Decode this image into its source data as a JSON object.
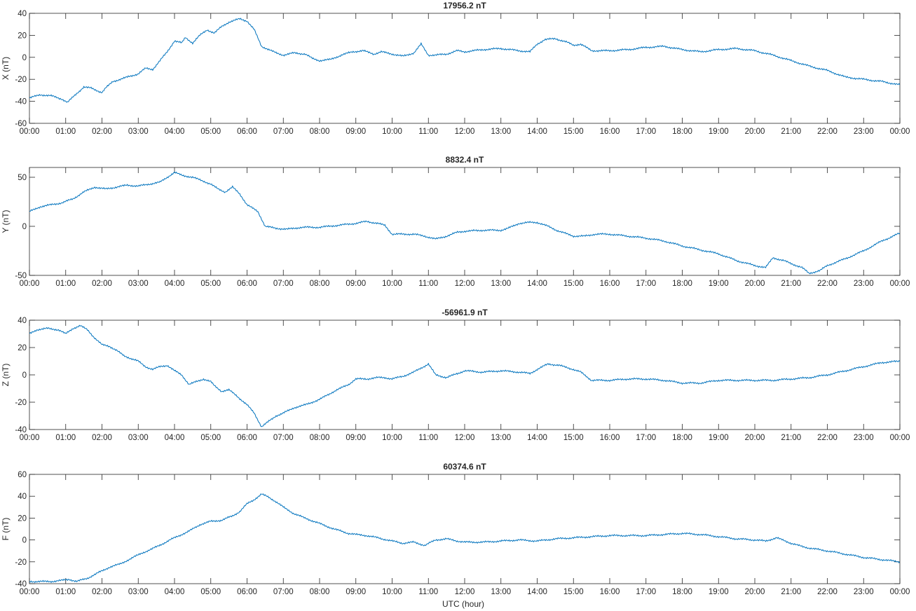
{
  "figure": {
    "xlabel": "UTC (hour)",
    "line_color": "#0072bd"
  },
  "chart_data": [
    {
      "type": "line",
      "title": "17956.2 nT",
      "ylabel": "X (nT)",
      "xlim": [
        0,
        24
      ],
      "ylim": [
        -60,
        40
      ],
      "yticks": [
        -60,
        -40,
        -20,
        0,
        20,
        40
      ],
      "xticks": [
        "00:00",
        "01:00",
        "02:00",
        "03:00",
        "04:00",
        "05:00",
        "06:00",
        "07:00",
        "08:00",
        "09:00",
        "10:00",
        "11:00",
        "12:00",
        "13:00",
        "14:00",
        "15:00",
        "16:00",
        "17:00",
        "18:00",
        "19:00",
        "20:00",
        "21:00",
        "22:00",
        "23:00",
        "00:00"
      ],
      "series": [
        {
          "x": [
            0,
            0.3,
            0.6,
            0.9,
            1.05,
            1.3,
            1.5,
            1.7,
            2.0,
            2.1,
            2.3,
            2.5,
            2.7,
            3.0,
            3.2,
            3.4,
            3.6,
            3.8,
            4.0,
            4.2,
            4.3,
            4.5,
            4.7,
            4.9,
            5.1,
            5.3,
            5.5,
            5.7,
            5.8,
            6.0,
            6.2,
            6.4,
            6.6,
            6.8,
            7.0,
            7.3,
            7.6,
            7.8,
            8.0,
            8.3,
            8.6,
            8.9,
            9.2,
            9.5,
            9.7,
            10.0,
            10.3,
            10.6,
            10.8,
            11.0,
            11.2,
            11.5,
            11.8,
            12.0,
            12.5,
            13.0,
            13.5,
            13.8,
            14.0,
            14.2,
            14.5,
            14.8,
            15.0,
            15.2,
            15.5,
            16.0,
            16.5,
            17.0,
            17.5,
            18.0,
            18.5,
            19.0,
            19.5,
            20.0,
            20.5,
            21.0,
            21.5,
            22.0,
            22.5,
            23.0,
            23.5,
            24.0
          ],
          "values": [
            -37,
            -34,
            -35,
            -38,
            -41,
            -33,
            -27,
            -28,
            -32,
            -28,
            -22,
            -20,
            -18,
            -15,
            -10,
            -11,
            -3,
            5,
            15,
            13,
            18,
            13,
            20,
            25,
            22,
            28,
            32,
            34,
            35,
            33,
            25,
            10,
            7,
            4,
            2,
            4,
            3,
            -1,
            -3,
            -2,
            2,
            5,
            6,
            3,
            5,
            3,
            1,
            4,
            12,
            2,
            2,
            3,
            6,
            5,
            7,
            8,
            6,
            5,
            12,
            16,
            17,
            14,
            11,
            12,
            6,
            6,
            7,
            9,
            10,
            7,
            5,
            7,
            8,
            6,
            2,
            -3,
            -8,
            -12,
            -18,
            -20,
            -22,
            -25
          ]
        }
      ]
    },
    {
      "type": "line",
      "title": "8832.4 nT",
      "ylabel": "Y (nT)",
      "xlim": [
        0,
        24
      ],
      "ylim": [
        -50,
        60
      ],
      "yticks": [
        -50,
        0,
        50
      ],
      "xticks": [
        "00:00",
        "01:00",
        "02:00",
        "03:00",
        "04:00",
        "05:00",
        "06:00",
        "07:00",
        "08:00",
        "09:00",
        "10:00",
        "11:00",
        "12:00",
        "13:00",
        "14:00",
        "15:00",
        "16:00",
        "17:00",
        "18:00",
        "19:00",
        "20:00",
        "21:00",
        "22:00",
        "23:00",
        "00:00"
      ],
      "series": [
        {
          "x": [
            0,
            0.3,
            0.6,
            0.9,
            1.2,
            1.5,
            1.8,
            2.1,
            2.4,
            2.7,
            3.0,
            3.3,
            3.6,
            3.8,
            4.0,
            4.2,
            4.5,
            4.8,
            5.0,
            5.2,
            5.4,
            5.6,
            5.8,
            6.0,
            6.3,
            6.5,
            6.8,
            7.1,
            7.5,
            8.0,
            8.5,
            9.0,
            9.3,
            9.6,
            9.8,
            10.0,
            10.3,
            10.6,
            10.9,
            11.2,
            11.5,
            11.8,
            12.0,
            12.5,
            13.0,
            13.2,
            13.5,
            13.8,
            14.0,
            14.3,
            14.6,
            15.0,
            15.3,
            15.6,
            16.0,
            16.5,
            17.0,
            17.5,
            18.0,
            18.5,
            19.0,
            19.5,
            20.0,
            20.3,
            20.5,
            20.8,
            21.0,
            21.3,
            21.5,
            21.8,
            22.0,
            22.5,
            23.0,
            23.5,
            24.0
          ],
          "values": [
            15,
            20,
            22,
            24,
            28,
            35,
            40,
            38,
            40,
            42,
            41,
            43,
            45,
            50,
            55,
            52,
            50,
            46,
            43,
            38,
            35,
            40,
            33,
            22,
            15,
            0,
            -2,
            -3,
            -1,
            -1,
            1,
            3,
            5,
            3,
            1,
            -8,
            -8,
            -8,
            -10,
            -13,
            -10,
            -6,
            -5,
            -4,
            -4,
            -2,
            3,
            4,
            4,
            0,
            -5,
            -10,
            -10,
            -8,
            -8,
            -10,
            -12,
            -15,
            -20,
            -24,
            -28,
            -35,
            -40,
            -42,
            -32,
            -35,
            -38,
            -42,
            -48,
            -45,
            -40,
            -33,
            -25,
            -15,
            -7
          ]
        }
      ]
    },
    {
      "type": "line",
      "title": "-56961.9 nT",
      "ylabel": "Z (nT)",
      "xlim": [
        0,
        24
      ],
      "ylim": [
        -40,
        40
      ],
      "yticks": [
        -40,
        -20,
        0,
        20,
        40
      ],
      "xticks": [
        "00:00",
        "01:00",
        "02:00",
        "03:00",
        "04:00",
        "05:00",
        "06:00",
        "07:00",
        "08:00",
        "09:00",
        "10:00",
        "11:00",
        "12:00",
        "13:00",
        "14:00",
        "15:00",
        "16:00",
        "17:00",
        "18:00",
        "19:00",
        "20:00",
        "21:00",
        "22:00",
        "23:00",
        "00:00"
      ],
      "series": [
        {
          "x": [
            0,
            0.2,
            0.5,
            0.8,
            1.0,
            1.2,
            1.4,
            1.6,
            1.8,
            2.0,
            2.2,
            2.4,
            2.6,
            2.8,
            3.0,
            3.2,
            3.4,
            3.6,
            3.8,
            4.0,
            4.2,
            4.4,
            4.6,
            4.8,
            5.0,
            5.1,
            5.3,
            5.5,
            5.7,
            6.0,
            6.2,
            6.4,
            6.6,
            6.8,
            7.0,
            7.3,
            7.6,
            8.0,
            8.4,
            8.8,
            9.0,
            9.3,
            9.6,
            9.8,
            10.0,
            10.3,
            10.6,
            10.8,
            11.0,
            11.2,
            11.5,
            11.8,
            12.0,
            12.5,
            13.0,
            13.5,
            13.8,
            14.0,
            14.3,
            14.6,
            15.0,
            15.2,
            15.5,
            16.0,
            16.5,
            17.0,
            17.5,
            18.0,
            18.5,
            19.0,
            19.5,
            20.0,
            20.5,
            21.0,
            21.5,
            22.0,
            22.5,
            23.0,
            23.5,
            24.0
          ],
          "values": [
            30,
            33,
            34,
            33,
            30,
            34,
            36,
            33,
            27,
            22,
            21,
            18,
            14,
            12,
            10,
            6,
            4,
            6,
            7,
            3,
            0,
            -7,
            -5,
            -3,
            -5,
            -8,
            -12,
            -11,
            -15,
            -22,
            -28,
            -38,
            -34,
            -30,
            -28,
            -24,
            -22,
            -18,
            -12,
            -7,
            -3,
            -3,
            -2,
            -2,
            -3,
            -1,
            2,
            5,
            8,
            0,
            -2,
            1,
            3,
            2,
            3,
            2,
            1,
            4,
            8,
            7,
            4,
            2,
            -4,
            -4,
            -3,
            -3,
            -4,
            -6,
            -6,
            -4,
            -4,
            -4,
            -4,
            -3,
            -2,
            0,
            3,
            6,
            9,
            10
          ]
        }
      ]
    },
    {
      "type": "line",
      "title": "60374.6 nT",
      "ylabel": "F (nT)",
      "xlim": [
        0,
        24
      ],
      "ylim": [
        -40,
        60
      ],
      "yticks": [
        -40,
        -20,
        0,
        20,
        40,
        60
      ],
      "xticks": [
        "00:00",
        "01:00",
        "02:00",
        "03:00",
        "04:00",
        "05:00",
        "06:00",
        "07:00",
        "08:00",
        "09:00",
        "10:00",
        "11:00",
        "12:00",
        "13:00",
        "14:00",
        "15:00",
        "16:00",
        "17:00",
        "18:00",
        "19:00",
        "20:00",
        "21:00",
        "22:00",
        "23:00",
        "00:00"
      ],
      "series": [
        {
          "x": [
            0,
            0.3,
            0.6,
            0.9,
            1.1,
            1.3,
            1.6,
            1.9,
            2.2,
            2.5,
            2.8,
            3.1,
            3.4,
            3.7,
            4.0,
            4.2,
            4.4,
            4.7,
            5.0,
            5.3,
            5.6,
            5.8,
            6.0,
            6.2,
            6.4,
            6.6,
            6.8,
            7.0,
            7.3,
            7.6,
            8.0,
            8.4,
            8.8,
            9.0,
            9.3,
            9.6,
            10.0,
            10.3,
            10.6,
            10.9,
            11.2,
            11.5,
            11.8,
            12.0,
            12.5,
            13.0,
            13.5,
            14.0,
            14.5,
            15.0,
            15.5,
            16.0,
            16.5,
            17.0,
            17.5,
            18.0,
            18.5,
            19.0,
            19.5,
            20.0,
            20.3,
            20.6,
            21.0,
            21.3,
            21.6,
            22.0,
            22.5,
            23.0,
            23.5,
            24.0
          ],
          "values": [
            -38,
            -38,
            -38,
            -37,
            -36,
            -38,
            -35,
            -30,
            -25,
            -22,
            -17,
            -12,
            -8,
            -3,
            2,
            5,
            8,
            14,
            17,
            18,
            22,
            26,
            33,
            37,
            42,
            39,
            35,
            30,
            24,
            20,
            15,
            10,
            6,
            5,
            4,
            2,
            -1,
            -3,
            -2,
            -5,
            0,
            1,
            -1,
            -2,
            -2,
            -1,
            0,
            -1,
            1,
            2,
            3,
            4,
            4,
            4,
            5,
            6,
            5,
            3,
            1,
            0,
            -1,
            2,
            -3,
            -6,
            -8,
            -10,
            -13,
            -16,
            -18,
            -20
          ]
        }
      ]
    }
  ]
}
